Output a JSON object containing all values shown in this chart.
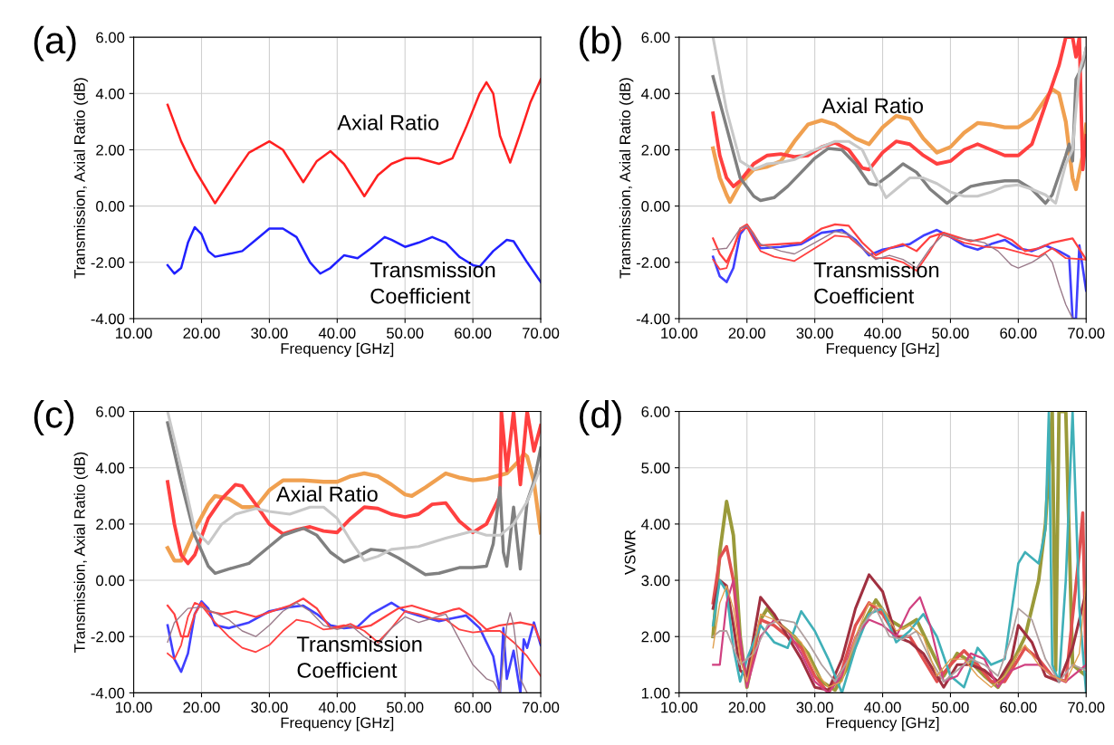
{
  "chart_data": [
    {
      "type": "line",
      "title": "(a)",
      "xlabel": "Frequency [GHz]",
      "ylabel": "Transmission, Axial Ratio (dB)",
      "xlim": [
        10,
        70
      ],
      "ylim": [
        -4,
        6
      ],
      "grid": true,
      "xticks": [
        {
          "value": 10,
          "label": "10.00"
        },
        {
          "value": 20,
          "label": "20.00"
        },
        {
          "value": 30,
          "label": "30.00"
        },
        {
          "value": 40,
          "label": "40.00"
        },
        {
          "value": 50,
          "label": "50.00"
        },
        {
          "value": 60,
          "label": "60.00"
        },
        {
          "value": 70,
          "label": "70.00"
        }
      ],
      "yticks": [
        {
          "value": -4,
          "label": "-4.00"
        },
        {
          "value": -2,
          "label": "-2.00"
        },
        {
          "value": 0,
          "label": "0.00"
        },
        {
          "value": 2,
          "label": "2.00"
        },
        {
          "value": 4,
          "label": "4.00"
        },
        {
          "value": 6,
          "label": "6.00"
        }
      ],
      "annotations": [
        "Axial Ratio",
        "Transmission\nCoefficient"
      ],
      "series": [
        {
          "color": "#ff2020",
          "x": [
            15,
            17,
            19,
            22,
            25,
            27,
            30,
            32,
            35,
            37,
            39,
            41,
            44,
            46,
            48,
            50,
            52,
            55,
            57,
            59,
            61,
            62,
            63,
            64,
            65.5,
            67,
            68.5,
            70
          ],
          "values": [
            3.6,
            2.3,
            1.3,
            0.1,
            1.2,
            1.9,
            2.3,
            2.0,
            0.85,
            1.6,
            1.95,
            1.5,
            0.35,
            1.1,
            1.5,
            1.7,
            1.7,
            1.5,
            1.7,
            2.8,
            4.0,
            4.4,
            4.0,
            2.5,
            1.55,
            2.6,
            3.7,
            4.5
          ]
        },
        {
          "color": "#2020ff",
          "x": [
            15,
            16,
            17,
            18,
            19,
            20,
            21,
            22,
            24,
            26,
            28,
            30,
            32,
            34,
            36,
            37.5,
            39,
            41,
            43,
            45,
            47,
            48,
            50,
            52,
            54,
            56,
            58,
            60,
            61,
            63,
            65,
            66,
            68,
            70
          ],
          "values": [
            -2.1,
            -2.4,
            -2.2,
            -1.3,
            -0.75,
            -1.0,
            -1.6,
            -1.8,
            -1.7,
            -1.6,
            -1.2,
            -0.8,
            -0.8,
            -1.1,
            -2.0,
            -2.4,
            -2.2,
            -1.75,
            -1.85,
            -1.5,
            -1.1,
            -1.2,
            -1.45,
            -1.3,
            -1.1,
            -1.3,
            -1.8,
            -2.1,
            -2.15,
            -1.6,
            -1.2,
            -1.25,
            -2.0,
            -2.7
          ]
        }
      ]
    },
    {
      "type": "line",
      "title": "(b)",
      "xlabel": "Frequency [GHz]",
      "ylabel": "Transmission, Axial Ratio (dB)",
      "xlim": [
        10,
        70
      ],
      "ylim": [
        -4,
        6
      ],
      "grid": true,
      "xticks": [
        {
          "value": 10,
          "label": "10.00"
        },
        {
          "value": 20,
          "label": "20.00"
        },
        {
          "value": 30,
          "label": "30.00"
        },
        {
          "value": 40,
          "label": "40.00"
        },
        {
          "value": 50,
          "label": "50.00"
        },
        {
          "value": 60,
          "label": "60.00"
        },
        {
          "value": 70,
          "label": "70.00"
        }
      ],
      "yticks": [
        {
          "value": -4,
          "label": "-4.00"
        },
        {
          "value": -2,
          "label": "-2.00"
        },
        {
          "value": 0,
          "label": "0.00"
        },
        {
          "value": 2,
          "label": "2.00"
        },
        {
          "value": 4,
          "label": "4.00"
        },
        {
          "value": 6,
          "label": "6.00"
        }
      ],
      "annotations": [
        "Axial Ratio",
        "Transmission\nCoefficient"
      ],
      "series": [
        {
          "color": "#f0a050",
          "x": [
            15,
            16,
            17,
            17.5,
            19,
            21,
            23,
            25,
            27,
            29,
            31,
            33,
            36,
            38,
            40,
            42,
            44,
            46,
            48,
            50,
            52,
            54,
            56,
            58,
            60,
            62,
            64,
            65,
            66,
            67,
            68,
            68.5,
            69.5,
            70
          ],
          "values": [
            2.05,
            1.0,
            0.4,
            0.15,
            0.8,
            1.3,
            1.4,
            1.6,
            2.3,
            2.9,
            3.05,
            2.9,
            2.4,
            2.2,
            2.8,
            3.2,
            3.1,
            2.4,
            1.9,
            2.1,
            2.6,
            2.95,
            2.9,
            2.8,
            2.8,
            3.1,
            3.8,
            4.15,
            4.0,
            3.0,
            1.0,
            0.6,
            1.8,
            2.9
          ]
        },
        {
          "color": "#ff4040",
          "x": [
            15,
            16,
            17,
            18,
            19,
            21,
            23,
            25,
            27,
            29,
            31,
            33,
            35,
            37,
            38,
            40,
            42,
            44,
            46,
            48,
            50,
            52,
            54,
            56,
            58,
            60,
            62,
            64,
            66,
            67,
            68,
            68.5,
            69,
            69.5,
            70
          ],
          "values": [
            3.3,
            1.8,
            1.0,
            0.7,
            0.9,
            1.5,
            1.8,
            1.85,
            1.75,
            1.8,
            2.1,
            2.25,
            2.0,
            1.35,
            1.3,
            1.9,
            2.3,
            2.2,
            1.8,
            1.5,
            1.6,
            2.0,
            2.2,
            2.0,
            1.8,
            1.8,
            2.2,
            3.6,
            5.0,
            6.0,
            6.0,
            5.3,
            6.0,
            1.3,
            2.5
          ]
        },
        {
          "color": "#808080",
          "x": [
            15,
            17,
            19,
            21,
            22,
            24,
            26,
            28,
            30,
            32,
            34,
            36,
            38,
            39,
            41,
            43,
            45,
            47,
            49.5,
            51,
            53,
            55,
            58,
            60,
            62,
            64,
            65,
            67,
            67.5,
            68,
            68.5,
            69.5,
            70
          ],
          "values": [
            4.6,
            2.8,
            1.0,
            0.35,
            0.2,
            0.3,
            0.7,
            1.2,
            1.7,
            2.05,
            2.0,
            1.5,
            0.8,
            0.75,
            1.1,
            1.5,
            1.2,
            0.6,
            0.1,
            0.4,
            0.7,
            0.8,
            0.9,
            0.9,
            0.6,
            0.1,
            0.4,
            1.8,
            2.2,
            1.6,
            4.5,
            5.0,
            5.6
          ]
        },
        {
          "color": "#c8c8c8",
          "x": [
            15,
            17,
            19,
            21,
            23,
            25,
            27,
            30,
            33,
            35,
            37,
            39,
            40.5,
            42,
            44,
            46,
            48,
            50,
            52,
            54,
            56,
            58,
            60,
            62,
            64,
            65.5,
            67,
            68,
            69,
            70
          ],
          "values": [
            6.0,
            3.4,
            1.6,
            1.3,
            1.5,
            1.55,
            1.65,
            2.0,
            2.3,
            2.3,
            2.0,
            1.0,
            0.3,
            0.6,
            1.0,
            1.0,
            0.8,
            0.5,
            0.35,
            0.35,
            0.5,
            0.7,
            0.75,
            0.6,
            0.4,
            0.1,
            1.5,
            2.0,
            4.8,
            5.6
          ]
        },
        {
          "color": "#4040ff",
          "x": [
            15,
            16,
            17,
            18,
            19,
            20,
            21,
            22,
            25,
            28,
            31,
            34,
            36,
            38,
            40,
            42,
            44,
            46,
            48,
            50,
            52,
            54,
            56,
            58,
            60,
            62,
            64,
            66,
            67.5,
            68,
            68.5,
            69,
            70
          ],
          "values": [
            -1.8,
            -2.5,
            -2.7,
            -2.2,
            -1.0,
            -0.7,
            -1.1,
            -1.5,
            -1.45,
            -1.35,
            -0.95,
            -0.85,
            -1.2,
            -1.75,
            -1.55,
            -1.45,
            -1.35,
            -1.05,
            -0.85,
            -1.1,
            -1.4,
            -1.55,
            -1.35,
            -1.2,
            -1.5,
            -1.6,
            -1.4,
            -1.6,
            -1.8,
            -4.0,
            -4.0,
            -1.4,
            -3.0
          ]
        },
        {
          "color": "#ff4040",
          "x": [
            15,
            16,
            17,
            18,
            19,
            20,
            21,
            22,
            25,
            28,
            31,
            33,
            35,
            37,
            39,
            41,
            43,
            45,
            47,
            49,
            51,
            53,
            55,
            57,
            59,
            61,
            63,
            65,
            67,
            68,
            70
          ],
          "values": [
            -1.15,
            -1.7,
            -2.0,
            -1.5,
            -0.8,
            -0.65,
            -1.0,
            -1.4,
            -1.35,
            -1.3,
            -0.8,
            -0.65,
            -0.7,
            -1.3,
            -1.75,
            -1.5,
            -1.35,
            -1.6,
            -1.1,
            -0.95,
            -1.1,
            -1.25,
            -1.15,
            -1.0,
            -1.2,
            -1.6,
            -1.5,
            -1.3,
            -1.2,
            -1.15,
            -1.9
          ]
        },
        {
          "color": "#ff4040",
          "x": [
            15,
            16,
            17,
            18,
            19,
            20,
            21,
            22,
            24,
            27,
            30,
            33,
            35,
            37,
            39,
            41,
            43,
            45,
            47,
            48.5,
            50,
            52,
            55,
            58,
            61,
            63,
            65,
            67,
            70
          ],
          "values": [
            -1.9,
            -2.25,
            -2.2,
            -1.5,
            -0.9,
            -0.75,
            -1.2,
            -1.6,
            -1.8,
            -1.95,
            -1.5,
            -1.05,
            -1.1,
            -1.5,
            -1.85,
            -1.85,
            -2.0,
            -2.3,
            -1.6,
            -1.0,
            -1.1,
            -1.3,
            -1.45,
            -1.5,
            -1.7,
            -1.8,
            -1.5,
            -1.85,
            -1.9
          ]
        },
        {
          "color": "#9a7a8a",
          "x": [
            15,
            17,
            19,
            20,
            22,
            25,
            27,
            30,
            33,
            35,
            37,
            39,
            41,
            43,
            45,
            47,
            49,
            51,
            53,
            55,
            57,
            59,
            60,
            62,
            64,
            65,
            66,
            67,
            68
          ],
          "values": [
            -1.55,
            -1.5,
            -0.8,
            -0.7,
            -1.35,
            -1.6,
            -1.7,
            -1.3,
            -0.9,
            -1.0,
            -1.5,
            -1.9,
            -1.75,
            -1.9,
            -2.2,
            -1.5,
            -1.0,
            -1.15,
            -1.2,
            -1.3,
            -1.6,
            -2.1,
            -2.2,
            -2.0,
            -1.7,
            -2.0,
            -2.8,
            -3.5,
            -4.0
          ]
        }
      ]
    },
    {
      "type": "line",
      "title": "(c)",
      "xlabel": "Frequency [GHz]",
      "ylabel": "Transmission, Axial Ratio (dB)",
      "xlim": [
        10,
        70
      ],
      "ylim": [
        -4,
        6
      ],
      "grid": true,
      "xticks": [
        {
          "value": 10,
          "label": "10.00"
        },
        {
          "value": 20,
          "label": "20.00"
        },
        {
          "value": 30,
          "label": "30.00"
        },
        {
          "value": 40,
          "label": "40.00"
        },
        {
          "value": 50,
          "label": "50.00"
        },
        {
          "value": 60,
          "label": "60.00"
        },
        {
          "value": 70,
          "label": "70.00"
        }
      ],
      "yticks": [
        {
          "value": -4,
          "label": "-4.00"
        },
        {
          "value": -2,
          "label": "-2.00"
        },
        {
          "value": 0,
          "label": "0.00"
        },
        {
          "value": 2,
          "label": "2.00"
        },
        {
          "value": 4,
          "label": "4.00"
        },
        {
          "value": 6,
          "label": "6.00"
        }
      ],
      "annotations": [
        "Axial Ratio",
        "Transmission\nCoefficient"
      ],
      "series": [
        {
          "color": "#f0a050",
          "x": [
            15,
            16,
            17,
            19,
            21,
            22,
            24,
            26,
            28,
            30,
            32,
            35,
            38,
            40,
            42,
            44,
            46,
            48,
            50,
            51,
            53,
            56,
            58,
            60,
            62,
            65,
            67,
            67.5,
            68,
            69,
            70
          ],
          "values": [
            1.15,
            0.7,
            0.7,
            1.8,
            2.7,
            3.0,
            2.9,
            2.6,
            2.6,
            3.2,
            3.55,
            3.55,
            3.5,
            3.5,
            3.7,
            3.8,
            3.7,
            3.4,
            3.05,
            3.0,
            3.3,
            3.8,
            3.65,
            3.55,
            3.6,
            3.8,
            4.3,
            4.5,
            4.4,
            3.5,
            1.7
          ]
        },
        {
          "color": "#ff4040",
          "x": [
            15,
            16,
            17,
            18,
            19,
            21,
            23,
            25,
            26,
            28,
            30,
            32,
            34,
            36,
            38,
            40,
            42,
            44,
            46,
            48,
            50,
            52,
            54,
            56,
            58,
            60,
            62,
            63,
            64,
            64.2,
            65,
            66,
            67,
            68,
            69,
            70
          ],
          "values": [
            3.5,
            2.0,
            0.9,
            0.6,
            0.9,
            2.2,
            2.9,
            3.4,
            3.35,
            2.7,
            2.0,
            1.65,
            1.8,
            1.9,
            1.75,
            1.7,
            2.2,
            2.6,
            2.55,
            2.35,
            2.25,
            2.35,
            2.7,
            2.75,
            2.1,
            1.7,
            2.0,
            2.5,
            3.0,
            6.0,
            3.9,
            6.0,
            3.4,
            6.0,
            4.6,
            5.5
          ]
        },
        {
          "color": "#808080",
          "x": [
            15,
            17,
            19,
            21,
            22,
            24,
            27,
            30,
            32,
            35,
            37,
            39,
            41,
            43,
            45,
            47,
            49,
            51,
            53,
            55,
            58,
            60,
            62,
            63,
            64,
            64.5,
            65,
            66,
            67,
            68,
            69,
            70
          ],
          "values": [
            5.6,
            3.5,
            1.6,
            0.5,
            0.25,
            0.4,
            0.6,
            1.2,
            1.6,
            1.85,
            1.6,
            1.0,
            0.65,
            0.85,
            1.1,
            1.05,
            0.8,
            0.5,
            0.2,
            0.25,
            0.45,
            0.45,
            0.5,
            1.3,
            3.3,
            1.0,
            0.5,
            2.6,
            0.4,
            2.8,
            3.5,
            4.7
          ]
        },
        {
          "color": "#c8c8c8",
          "x": [
            15,
            17,
            19,
            21,
            23,
            25,
            28,
            30,
            33,
            36,
            38,
            40,
            42,
            44,
            46,
            48,
            52,
            56,
            60,
            62,
            64,
            66,
            68,
            70
          ],
          "values": [
            6.0,
            4.0,
            1.8,
            1.3,
            2.0,
            2.35,
            2.55,
            2.45,
            2.35,
            2.6,
            2.6,
            2.2,
            1.4,
            0.7,
            0.85,
            1.1,
            1.2,
            1.5,
            1.75,
            1.6,
            1.6,
            2.0,
            2.8,
            4.0
          ]
        },
        {
          "color": "#4040ff",
          "x": [
            15,
            16,
            17,
            18,
            19,
            20,
            21,
            22,
            24,
            27,
            30,
            33,
            35,
            37,
            39,
            41,
            43,
            45,
            48,
            50,
            52,
            55,
            57,
            59,
            61,
            63,
            64,
            64.5,
            65,
            66,
            67,
            67.5,
            68,
            69,
            70
          ],
          "values": [
            -1.6,
            -2.8,
            -3.25,
            -2.6,
            -1.2,
            -0.75,
            -1.0,
            -1.6,
            -1.7,
            -1.5,
            -1.1,
            -0.95,
            -0.9,
            -1.2,
            -1.6,
            -1.7,
            -1.65,
            -1.2,
            -0.8,
            -1.1,
            -1.25,
            -1.45,
            -1.35,
            -1.25,
            -1.7,
            -2.7,
            -4.0,
            -1.7,
            -3.5,
            -2.5,
            -4.0,
            -2.1,
            -2.4,
            -1.5,
            -2.3
          ]
        },
        {
          "color": "#ff4040",
          "x": [
            15,
            16,
            17,
            18,
            19,
            20,
            21,
            23,
            25,
            28,
            31,
            33,
            35,
            37,
            39,
            41,
            43,
            45,
            47,
            49,
            51,
            53,
            55,
            57,
            58,
            60,
            62,
            64,
            67,
            69,
            70
          ],
          "values": [
            -0.9,
            -1.2,
            -2.0,
            -2.0,
            -1.2,
            -0.8,
            -1.1,
            -1.2,
            -1.1,
            -1.3,
            -1.05,
            -0.9,
            -0.65,
            -1.0,
            -1.7,
            -1.6,
            -1.7,
            -1.6,
            -1.3,
            -1.0,
            -0.9,
            -1.05,
            -1.2,
            -1.05,
            -1.0,
            -1.3,
            -1.75,
            -1.6,
            -1.5,
            -1.6,
            -2.2
          ]
        },
        {
          "color": "#ff4040",
          "x": [
            15,
            16,
            17,
            18,
            19,
            20,
            22,
            24,
            26,
            28,
            30,
            32,
            34,
            36,
            38,
            40,
            42,
            44,
            46,
            48,
            50,
            52,
            54,
            56,
            58,
            60,
            62,
            64,
            66,
            68,
            70
          ],
          "values": [
            -2.6,
            -2.8,
            -2.3,
            -1.3,
            -0.8,
            -0.9,
            -1.5,
            -2.0,
            -2.4,
            -2.55,
            -2.3,
            -1.8,
            -1.4,
            -1.5,
            -1.75,
            -1.7,
            -1.55,
            -1.8,
            -2.2,
            -1.7,
            -1.1,
            -1.2,
            -1.35,
            -1.4,
            -1.75,
            -1.85,
            -1.8,
            -1.8,
            -2.2,
            -2.7,
            -3.4
          ]
        },
        {
          "color": "#9a7a8a",
          "x": [
            15,
            16,
            18,
            20,
            22,
            24,
            26,
            28,
            30,
            32,
            34,
            36,
            38,
            40,
            42,
            44,
            46,
            48,
            50,
            52,
            54,
            56,
            58,
            60,
            62,
            63,
            64,
            65,
            65.5,
            66,
            67,
            68
          ],
          "values": [
            -2.2,
            -1.5,
            -1.0,
            -0.95,
            -1.15,
            -1.4,
            -1.8,
            -2.0,
            -1.6,
            -1.1,
            -0.8,
            -1.1,
            -1.6,
            -1.75,
            -1.6,
            -2.0,
            -2.3,
            -1.7,
            -1.3,
            -1.5,
            -1.35,
            -1.2,
            -2.1,
            -3.0,
            -3.5,
            -3.6,
            -4.0,
            -1.6,
            -1.15,
            -1.6,
            -3.5,
            -4.0
          ]
        }
      ]
    },
    {
      "type": "line",
      "title": "(d)",
      "xlabel": "Frequency [GHz]",
      "ylabel": "VSWR",
      "xlim": [
        10,
        70
      ],
      "ylim": [
        1,
        6
      ],
      "grid": true,
      "xticks": [
        {
          "value": 10,
          "label": "10.00"
        },
        {
          "value": 20,
          "label": "20.00"
        },
        {
          "value": 30,
          "label": "30.00"
        },
        {
          "value": 40,
          "label": "40.00"
        },
        {
          "value": 50,
          "label": "50.00"
        },
        {
          "value": 60,
          "label": "60.00"
        },
        {
          "value": 70,
          "label": "70.00"
        }
      ],
      "yticks": [
        {
          "value": 1,
          "label": "1.00"
        },
        {
          "value": 2,
          "label": "2.00"
        },
        {
          "value": 3,
          "label": "3.00"
        },
        {
          "value": 4,
          "label": "4.00"
        },
        {
          "value": 5,
          "label": "5.00"
        },
        {
          "value": 6,
          "label": "6.00"
        }
      ],
      "series": [
        {
          "color": "#9a9a3a",
          "x": [
            15,
            16,
            17,
            18,
            19,
            20,
            22,
            23,
            25,
            27,
            29,
            31,
            33,
            35,
            37,
            39,
            41,
            43,
            45,
            47,
            49,
            51,
            53,
            55,
            57,
            59,
            61,
            63,
            64,
            65,
            65.5,
            66,
            67,
            68,
            70
          ],
          "values": [
            2.0,
            3.5,
            4.4,
            3.8,
            2.0,
            1.1,
            2.3,
            2.5,
            2.2,
            2.0,
            1.7,
            1.2,
            1.05,
            1.5,
            2.2,
            2.65,
            2.3,
            2.15,
            2.3,
            1.8,
            1.3,
            1.7,
            1.55,
            1.3,
            1.1,
            1.5,
            2.0,
            3.0,
            4.0,
            6.0,
            1.4,
            6.0,
            6.0,
            1.5,
            1.3
          ]
        },
        {
          "color": "#e05050",
          "x": [
            15,
            16,
            17,
            18,
            19,
            20,
            22,
            24,
            26,
            28,
            30,
            32,
            34,
            36,
            38,
            40,
            42,
            44,
            46,
            48,
            50,
            52,
            54,
            56,
            58,
            60,
            61,
            63,
            65,
            67,
            69,
            69.5,
            70
          ],
          "values": [
            2.6,
            3.4,
            3.6,
            3.0,
            1.8,
            1.2,
            2.3,
            2.2,
            2.0,
            1.8,
            1.3,
            1.0,
            1.4,
            2.2,
            2.6,
            2.4,
            2.0,
            2.0,
            1.6,
            1.2,
            1.5,
            1.75,
            1.5,
            1.2,
            1.2,
            1.6,
            1.8,
            1.6,
            1.3,
            1.2,
            3.5,
            4.2,
            1.4
          ]
        },
        {
          "color": "#a03040",
          "x": [
            15,
            16,
            17,
            18,
            19,
            20,
            22,
            24,
            26,
            28,
            30,
            32,
            34,
            36,
            38,
            40,
            42,
            44,
            46,
            48,
            49,
            51,
            53,
            55,
            57,
            59,
            60,
            62,
            64,
            66,
            68,
            70
          ],
          "values": [
            2.5,
            3.0,
            2.9,
            2.2,
            1.4,
            1.3,
            2.7,
            2.4,
            2.0,
            1.6,
            1.1,
            1.05,
            1.6,
            2.5,
            3.1,
            2.8,
            2.0,
            1.9,
            1.7,
            1.3,
            1.1,
            1.5,
            1.5,
            1.4,
            1.2,
            1.6,
            2.2,
            1.9,
            1.3,
            1.2,
            1.8,
            2.8
          ]
        },
        {
          "color": "#40b0b8",
          "x": [
            15,
            16,
            17,
            18,
            19,
            20,
            22,
            24,
            26,
            28,
            30,
            32,
            34,
            36,
            38,
            40,
            42,
            44,
            46,
            48,
            50,
            52,
            54,
            56,
            58,
            60,
            61,
            63,
            64,
            64.5,
            65,
            66,
            67,
            68,
            69,
            70
          ],
          "values": [
            2.2,
            3.0,
            2.8,
            1.8,
            1.2,
            1.6,
            2.2,
            1.9,
            1.8,
            2.45,
            2.1,
            1.6,
            1.0,
            1.8,
            2.4,
            2.5,
            1.9,
            2.1,
            2.4,
            2.0,
            1.3,
            1.1,
            1.8,
            1.5,
            1.6,
            3.3,
            3.5,
            3.3,
            3.9,
            6.0,
            1.5,
            1.2,
            3.0,
            6.0,
            2.5,
            1.0
          ]
        },
        {
          "color": "#d04080",
          "x": [
            15,
            16,
            17,
            18,
            19,
            20,
            22,
            24,
            26,
            28,
            30,
            32,
            34,
            36,
            38,
            40,
            42,
            44,
            45.5,
            47,
            49,
            51,
            53,
            55,
            57,
            59,
            61,
            63,
            65,
            67,
            69,
            70
          ],
          "values": [
            1.5,
            1.5,
            2.6,
            3.0,
            2.0,
            1.1,
            2.0,
            2.3,
            2.1,
            1.7,
            1.2,
            1.0,
            1.3,
            2.0,
            2.3,
            2.2,
            2.0,
            2.5,
            2.7,
            2.2,
            1.2,
            1.3,
            1.7,
            1.6,
            1.1,
            1.4,
            1.5,
            1.5,
            1.3,
            1.2,
            1.4,
            1.5
          ]
        },
        {
          "color": "#b0a0a0",
          "x": [
            15,
            16,
            17,
            18,
            19,
            21,
            23,
            25,
            27,
            29,
            31,
            33,
            35,
            37,
            39,
            41,
            43,
            45,
            47,
            49,
            51,
            53,
            55,
            57,
            59,
            60,
            62,
            64,
            66,
            68,
            70
          ],
          "values": [
            2.0,
            2.1,
            2.1,
            1.8,
            1.5,
            1.7,
            2.2,
            2.3,
            2.25,
            1.9,
            1.5,
            1.2,
            1.6,
            2.2,
            2.5,
            2.0,
            1.95,
            2.1,
            1.6,
            1.2,
            1.4,
            1.6,
            1.5,
            1.3,
            2.0,
            2.5,
            2.3,
            1.6,
            1.2,
            1.5,
            1.4
          ]
        },
        {
          "color": "#e0a050",
          "x": [
            15,
            16,
            17,
            18,
            19,
            20,
            22,
            24,
            26,
            28,
            30,
            32,
            34,
            36,
            38,
            40,
            42,
            44,
            46,
            48,
            50,
            52,
            54,
            56,
            58,
            60,
            61,
            63,
            65,
            67,
            69,
            70
          ],
          "values": [
            1.8,
            2.6,
            2.9,
            2.5,
            1.6,
            1.2,
            2.4,
            2.3,
            2.1,
            1.9,
            1.4,
            1.1,
            1.2,
            2.0,
            2.6,
            2.5,
            2.1,
            2.2,
            2.0,
            1.3,
            1.6,
            1.6,
            1.3,
            1.1,
            1.3,
            1.7,
            1.85,
            1.5,
            1.3,
            1.2,
            1.7,
            3.0
          ]
        }
      ]
    }
  ]
}
